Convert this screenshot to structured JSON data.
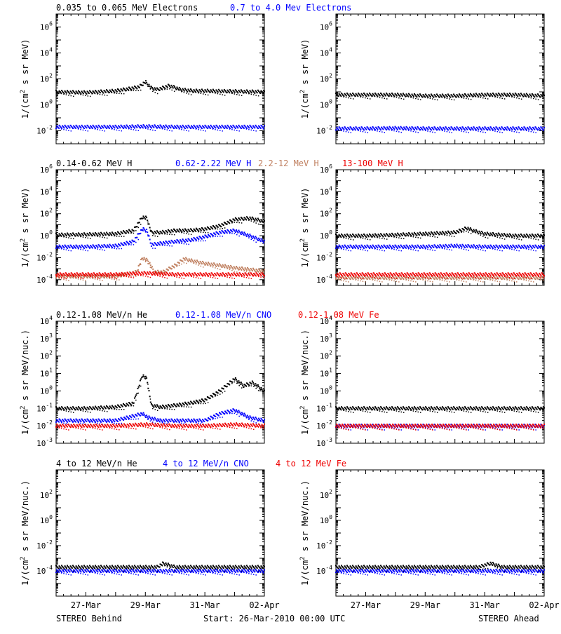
{
  "colors": {
    "black": "#000000",
    "blue": "#0000ff",
    "tan": "#c08060",
    "red": "#ee0000"
  },
  "footer": {
    "left": "STEREO Behind",
    "center": "Start: 26-Mar-2010 00:00 UTC",
    "right": "STEREO Ahead"
  },
  "x_ticks": [
    "27-Mar",
    "29-Mar",
    "31-Mar",
    "02-Apr"
  ],
  "chart_data": [
    {
      "type": "scatter",
      "title": "",
      "legend": [
        {
          "text": "0.035 to 0.065 MeV Electrons",
          "color": "#000000"
        },
        {
          "text": "0.7 to 4.0 Mev Electrons",
          "color": "#0000ff"
        }
      ],
      "ylabel": "1/(cm2 s sr MeV)",
      "y_scale": "log",
      "ylim": [
        0.001,
        10000000
      ],
      "y_ticks": [
        {
          "exp": -2,
          "label": "10-2"
        },
        {
          "exp": 0,
          "label": "100"
        },
        {
          "exp": 2,
          "label": "102"
        },
        {
          "exp": 4,
          "label": "104"
        },
        {
          "exp": 6,
          "label": "106"
        }
      ],
      "x_unit": "days since 26-Mar-2010 00:00 UTC",
      "xlim": [
        0,
        7
      ],
      "panels": [
        {
          "side": "STEREO Behind",
          "series": [
            {
              "name": "0.035 to 0.065 MeV Electrons",
              "color": "#000000",
              "x": [
                0,
                1,
                2,
                2.5,
                2.8,
                3.0,
                3.2,
                3.4,
                3.8,
                4.2,
                4.6,
                5,
                6,
                7
              ],
              "y": [
                10,
                9,
                12,
                18,
                25,
                60,
                20,
                15,
                30,
                15,
                12,
                12,
                11,
                10
              ]
            },
            {
              "name": "0.7 to 4.0 Mev Electrons",
              "color": "#0000ff",
              "x": [
                0,
                1,
                2,
                3,
                4,
                5,
                6,
                7
              ],
              "y": [
                0.02,
                0.02,
                0.02,
                0.022,
                0.02,
                0.02,
                0.02,
                0.02
              ]
            }
          ]
        },
        {
          "side": "STEREO Ahead",
          "series": [
            {
              "name": "0.035 to 0.065 MeV Electrons",
              "color": "#000000",
              "x": [
                0,
                1,
                2,
                3,
                4,
                5,
                6,
                7
              ],
              "y": [
                6,
                6,
                6,
                5,
                5,
                6,
                6,
                5
              ]
            },
            {
              "name": "0.7 to 4.0 Mev Electrons",
              "color": "#0000ff",
              "x": [
                0,
                1,
                2,
                3,
                4,
                5,
                6,
                7
              ],
              "y": [
                0.015,
                0.015,
                0.016,
                0.015,
                0.015,
                0.015,
                0.015,
                0.015
              ]
            }
          ]
        }
      ]
    },
    {
      "type": "scatter",
      "title": "",
      "legend": [
        {
          "text": "0.14-0.62 MeV H",
          "color": "#000000"
        },
        {
          "text": "0.62-2.22 MeV H",
          "color": "#0000ff"
        },
        {
          "text": "2.2-12 MeV H",
          "color": "#c08060"
        },
        {
          "text": "13-100 MeV H",
          "color": "#ee0000"
        }
      ],
      "ylabel": "1/(cm2 s sr MeV)",
      "y_scale": "log",
      "ylim": [
        3e-05,
        1000000
      ],
      "y_ticks": [
        {
          "exp": -4,
          "label": "10-4"
        },
        {
          "exp": -2,
          "label": "10-2"
        },
        {
          "exp": 0,
          "label": "100"
        },
        {
          "exp": 2,
          "label": "102"
        },
        {
          "exp": 4,
          "label": "104"
        },
        {
          "exp": 6,
          "label": "106"
        }
      ],
      "x_unit": "days since 26-Mar-2010 00:00 UTC",
      "xlim": [
        0,
        7
      ],
      "panels": [
        {
          "side": "STEREO Behind",
          "series": [
            {
              "name": "0.14-0.62 MeV H",
              "color": "#000000",
              "x": [
                0,
                1,
                2,
                2.6,
                2.9,
                3.05,
                3.2,
                3.5,
                4,
                4.5,
                5,
                5.5,
                6,
                6.5,
                7
              ],
              "y": [
                1.2,
                1.3,
                1.5,
                3,
                50,
                40,
                2,
                2,
                3,
                3,
                4,
                8,
                30,
                40,
                20
              ]
            },
            {
              "name": "0.62-2.22 MeV H",
              "color": "#0000ff",
              "x": [
                0,
                1,
                2,
                2.6,
                2.9,
                3.05,
                3.2,
                3.5,
                4,
                4.5,
                5,
                5.5,
                6,
                6.5,
                7
              ],
              "y": [
                0.1,
                0.1,
                0.12,
                0.3,
                4,
                3,
                0.15,
                0.2,
                0.3,
                0.4,
                0.8,
                2,
                3,
                1,
                0.3
              ]
            },
            {
              "name": "2.2-12 MeV H",
              "color": "#c08060",
              "x": [
                0,
                2,
                2.7,
                2.9,
                3.1,
                3.3,
                3.6,
                4,
                4.3,
                4.6,
                5,
                5.5,
                6,
                7
              ],
              "y": [
                0.0002,
                0.0002,
                0.0005,
                0.01,
                0.005,
                0.0005,
                0.0005,
                0.002,
                0.008,
                0.005,
                0.003,
                0.002,
                0.0012,
                0.0006
              ]
            },
            {
              "name": "13-100 MeV H",
              "color": "#ee0000",
              "x": [
                0,
                1,
                2,
                3,
                4,
                5,
                6,
                7
              ],
              "y": [
                0.0003,
                0.0003,
                0.0003,
                0.0004,
                0.0003,
                0.0003,
                0.0003,
                0.0003
              ]
            }
          ]
        },
        {
          "side": "STEREO Ahead",
          "series": [
            {
              "name": "0.14-0.62 MeV H",
              "color": "#000000",
              "x": [
                0,
                1,
                2,
                3,
                4,
                4.4,
                4.6,
                5,
                6,
                7
              ],
              "y": [
                1,
                1,
                1.2,
                1.5,
                2,
                5,
                3,
                1.5,
                1,
                1
              ]
            },
            {
              "name": "0.62-2.22 MeV H",
              "color": "#0000ff",
              "x": [
                0,
                1,
                2,
                3,
                4,
                5,
                6,
                7
              ],
              "y": [
                0.1,
                0.1,
                0.1,
                0.1,
                0.12,
                0.1,
                0.1,
                0.1
              ]
            },
            {
              "name": "2.2-12 MeV H",
              "color": "#c08060",
              "x": [
                0,
                1,
                2,
                3,
                4,
                5,
                6,
                7
              ],
              "y": [
                0.00015,
                0.00015,
                0.00015,
                0.00015,
                0.00015,
                0.00015,
                0.00015,
                0.00015
              ]
            },
            {
              "name": "13-100 MeV H",
              "color": "#ee0000",
              "x": [
                0,
                1,
                2,
                3,
                4,
                5,
                6,
                7
              ],
              "y": [
                0.0003,
                0.0003,
                0.0003,
                0.0003,
                0.0003,
                0.0003,
                0.0003,
                0.0003
              ]
            }
          ]
        }
      ]
    },
    {
      "type": "scatter",
      "title": "",
      "legend": [
        {
          "text": "0.12-1.08 MeV/n He",
          "color": "#000000"
        },
        {
          "text": "0.12-1.08 MeV/n CNO",
          "color": "#0000ff"
        },
        {
          "text": "0.12-1.08 MeV Fe",
          "color": "#ee0000"
        }
      ],
      "ylabel": "1/(cm2 s sr MeV/nuc.)",
      "y_scale": "log",
      "ylim": [
        0.001,
        10000
      ],
      "y_ticks": [
        {
          "exp": -3,
          "label": "10-3"
        },
        {
          "exp": -2,
          "label": "10-2"
        },
        {
          "exp": -1,
          "label": "10-1"
        },
        {
          "exp": 0,
          "label": "100"
        },
        {
          "exp": 1,
          "label": "101"
        },
        {
          "exp": 2,
          "label": "102"
        },
        {
          "exp": 3,
          "label": "103"
        },
        {
          "exp": 4,
          "label": "104"
        }
      ],
      "x_unit": "days since 26-Mar-2010 00:00 UTC",
      "xlim": [
        0,
        7
      ],
      "panels": [
        {
          "side": "STEREO Behind",
          "series": [
            {
              "name": "0.12-1.08 MeV/n He",
              "color": "#000000",
              "x": [
                0,
                1,
                2,
                2.6,
                2.9,
                3.05,
                3.2,
                3.5,
                4,
                4.5,
                5,
                5.5,
                6,
                6.3,
                6.6,
                7
              ],
              "y": [
                0.1,
                0.1,
                0.12,
                0.2,
                8,
                5,
                0.15,
                0.12,
                0.15,
                0.2,
                0.3,
                1,
                5,
                2,
                3,
                1
              ]
            },
            {
              "name": "0.12-1.08 MeV/n CNO",
              "color": "#0000ff",
              "x": [
                0,
                1,
                2,
                2.9,
                3.1,
                3.5,
                4,
                5,
                5.5,
                6,
                6.5,
                7
              ],
              "y": [
                0.02,
                0.02,
                0.02,
                0.05,
                0.03,
                0.02,
                0.02,
                0.02,
                0.05,
                0.08,
                0.03,
                0.02
              ]
            },
            {
              "name": "0.12-1.08 MeV Fe",
              "color": "#ee0000",
              "x": [
                0,
                1,
                2,
                3,
                4,
                5,
                6,
                7
              ],
              "y": [
                0.01,
                0.01,
                0.01,
                0.012,
                0.01,
                0.01,
                0.012,
                0.01
              ]
            }
          ]
        },
        {
          "side": "STEREO Ahead",
          "series": [
            {
              "name": "0.12-1.08 MeV/n He",
              "color": "#000000",
              "x": [
                0,
                1,
                2,
                3,
                4,
                5,
                6,
                7
              ],
              "y": [
                0.1,
                0.1,
                0.1,
                0.1,
                0.1,
                0.1,
                0.1,
                0.1
              ]
            },
            {
              "name": "0.12-1.08 MeV/n CNO",
              "color": "#0000ff",
              "x": [
                0,
                1,
                2,
                3,
                4,
                5,
                6,
                7
              ],
              "y": [
                0.01,
                0.01,
                0.01,
                0.01,
                0.01,
                0.01,
                0.01,
                0.01
              ]
            },
            {
              "name": "0.12-1.08 MeV Fe",
              "color": "#ee0000",
              "x": [
                0,
                1,
                2,
                3,
                4,
                5,
                6,
                7
              ],
              "y": [
                0.01,
                0.01,
                0.01,
                0.01,
                0.01,
                0.01,
                0.01,
                0.01
              ]
            }
          ]
        }
      ]
    },
    {
      "type": "scatter",
      "title": "",
      "legend": [
        {
          "text": "4 to 12 MeV/n He",
          "color": "#000000"
        },
        {
          "text": "4 to 12 MeV/n CNO",
          "color": "#0000ff"
        },
        {
          "text": "4 to 12 MeV Fe",
          "color": "#ee0000"
        }
      ],
      "ylabel": "1/(cm2 s sr MeV/nuc.)",
      "y_scale": "log",
      "ylim": [
        1e-06,
        10000
      ],
      "y_ticks": [
        {
          "exp": -4,
          "label": "10-4"
        },
        {
          "exp": -2,
          "label": "10-2"
        },
        {
          "exp": 0,
          "label": "100"
        },
        {
          "exp": 2,
          "label": "102"
        }
      ],
      "x_unit": "days since 26-Mar-2010 00:00 UTC",
      "xlim": [
        0,
        7
      ],
      "panels": [
        {
          "side": "STEREO Behind",
          "series": [
            {
              "name": "4 to 12 MeV/n He",
              "color": "#000000",
              "x": [
                0.3,
                0.8,
                1.5,
                2.2,
                2.6,
                3.1,
                3.4,
                3.6,
                4.0,
                4.3,
                4.8,
                5.2,
                5.6,
                6.0,
                6.4,
                6.8
              ],
              "y": [
                0.0002,
                0.0002,
                0.0002,
                0.0002,
                0.0002,
                0.0002,
                0.0002,
                0.0004,
                0.0002,
                0.0002,
                0.0002,
                0.0002,
                0.0002,
                0.0002,
                0.0002,
                0.0002
              ]
            },
            {
              "name": "4 to 12 MeV/n CNO",
              "color": "#0000ff",
              "x": [
                0,
                7
              ],
              "y": [
                0.0001,
                0.0001
              ]
            }
          ]
        },
        {
          "side": "STEREO Ahead",
          "series": [
            {
              "name": "4 to 12 MeV/n He",
              "color": "#000000",
              "x": [
                2.5,
                2.9,
                3.3,
                3.7,
                4.1,
                4.5,
                4.8,
                5.2,
                5.6,
                6.0
              ],
              "y": [
                0.0002,
                0.0002,
                0.0002,
                0.0002,
                0.0002,
                0.0002,
                0.0002,
                0.0004,
                0.0002,
                0.0002
              ]
            },
            {
              "name": "4 to 12 MeV/n CNO",
              "color": "#0000ff",
              "x": [
                0,
                7
              ],
              "y": [
                0.0001,
                0.0001
              ]
            }
          ]
        }
      ]
    }
  ]
}
